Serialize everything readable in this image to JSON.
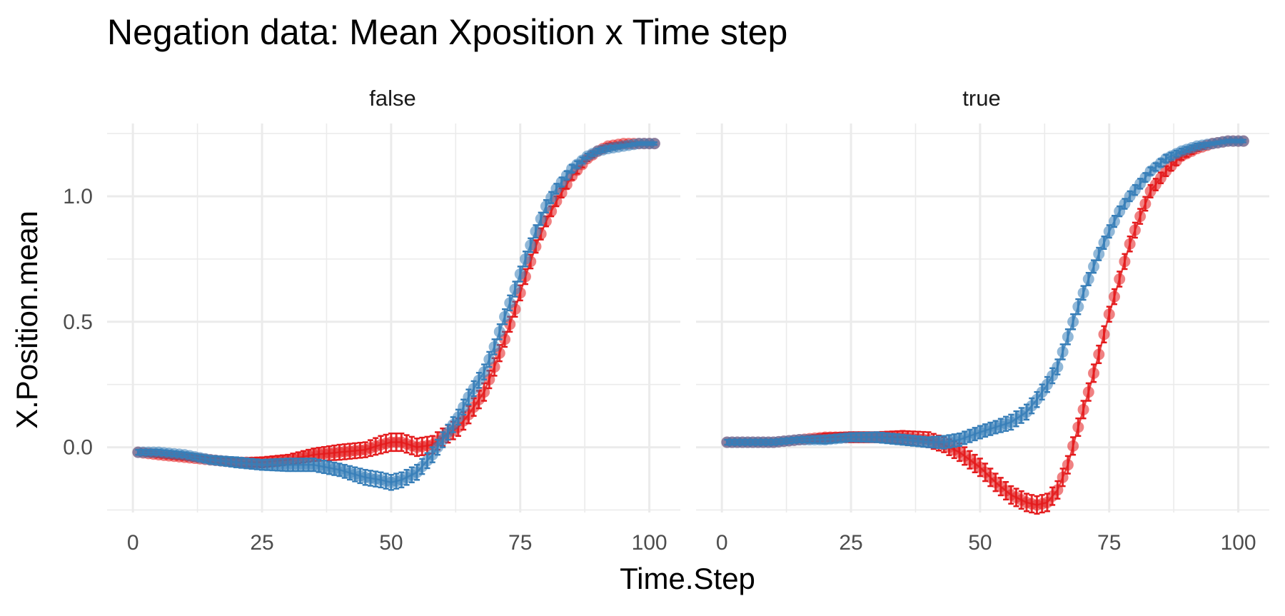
{
  "chart_data": {
    "type": "line",
    "title": "Negation data: Mean Xposition x Time step",
    "xlabel": "Time.Step",
    "ylabel": "X.Position.mean",
    "xlim": [
      -5,
      106
    ],
    "ylim": [
      -0.26,
      1.29
    ],
    "xticks": [
      0,
      25,
      50,
      75,
      100
    ],
    "xtick_labels": [
      "0",
      "25",
      "50",
      "75",
      "100"
    ],
    "yticks": [
      0.0,
      0.5,
      1.0
    ],
    "ytick_labels": [
      "0.0",
      "0.5",
      "1.0"
    ],
    "error_bars": true,
    "grid": true,
    "legend": "none",
    "series_colors": {
      "red": "#e41a1c",
      "blue": "#377eb8"
    },
    "panels": [
      {
        "label": "false",
        "series": [
          {
            "name": "red",
            "color": "#e41a1c",
            "x": [
              1,
              5,
              10,
              15,
              20,
              25,
              30,
              35,
              40,
              45,
              48,
              50,
              52,
              55,
              58,
              60,
              63,
              65,
              68,
              70,
              72,
              74,
              76,
              78,
              80,
              82,
              85,
              88,
              90,
              92,
              95,
              98,
              101
            ],
            "y": [
              -0.02,
              -0.03,
              -0.04,
              -0.05,
              -0.06,
              -0.06,
              -0.05,
              -0.03,
              -0.02,
              -0.01,
              0.01,
              0.02,
              0.02,
              0.0,
              0.01,
              0.04,
              0.08,
              0.13,
              0.22,
              0.32,
              0.43,
              0.55,
              0.68,
              0.8,
              0.9,
              0.98,
              1.08,
              1.15,
              1.18,
              1.2,
              1.21,
              1.21,
              1.21
            ],
            "err": [
              0.01,
              0.01,
              0.01,
              0.01,
              0.015,
              0.02,
              0.02,
              0.025,
              0.03,
              0.03,
              0.035,
              0.035,
              0.035,
              0.035,
              0.035,
              0.035,
              0.035,
              0.035,
              0.035,
              0.035,
              0.03,
              0.03,
              0.03,
              0.025,
              0.02,
              0.02,
              0.015,
              0.01,
              0.01,
              0.01,
              0.005,
              0.005,
              0.005
            ]
          },
          {
            "name": "blue",
            "color": "#377eb8",
            "x": [
              1,
              5,
              10,
              15,
              20,
              25,
              30,
              35,
              40,
              45,
              48,
              50,
              52,
              55,
              58,
              60,
              63,
              65,
              68,
              70,
              72,
              74,
              76,
              78,
              80,
              82,
              85,
              88,
              90,
              92,
              95,
              98,
              101
            ],
            "y": [
              -0.02,
              -0.02,
              -0.03,
              -0.05,
              -0.06,
              -0.07,
              -0.07,
              -0.07,
              -0.09,
              -0.12,
              -0.13,
              -0.14,
              -0.13,
              -0.1,
              -0.03,
              0.03,
              0.12,
              0.2,
              0.3,
              0.4,
              0.52,
              0.63,
              0.75,
              0.86,
              0.96,
              1.03,
              1.11,
              1.16,
              1.18,
              1.19,
              1.2,
              1.21,
              1.21
            ],
            "err": [
              0.01,
              0.01,
              0.01,
              0.015,
              0.02,
              0.02,
              0.025,
              0.025,
              0.025,
              0.03,
              0.03,
              0.03,
              0.03,
              0.03,
              0.03,
              0.03,
              0.03,
              0.03,
              0.03,
              0.03,
              0.03,
              0.03,
              0.03,
              0.025,
              0.025,
              0.02,
              0.015,
              0.01,
              0.01,
              0.01,
              0.005,
              0.005,
              0.005
            ]
          }
        ]
      },
      {
        "label": "true",
        "series": [
          {
            "name": "red",
            "color": "#e41a1c",
            "x": [
              1,
              5,
              10,
              15,
              20,
              25,
              30,
              35,
              40,
              43,
              46,
              50,
              53,
              56,
              59,
              61,
              63,
              65,
              67,
              69,
              71,
              73,
              75,
              77,
              79,
              81,
              83,
              86,
              89,
              92,
              95,
              98,
              101
            ],
            "y": [
              0.02,
              0.02,
              0.02,
              0.03,
              0.04,
              0.04,
              0.04,
              0.04,
              0.03,
              0.01,
              -0.02,
              -0.08,
              -0.14,
              -0.19,
              -0.22,
              -0.23,
              -0.22,
              -0.17,
              -0.07,
              0.08,
              0.22,
              0.37,
              0.53,
              0.67,
              0.81,
              0.92,
              1.02,
              1.1,
              1.16,
              1.19,
              1.21,
              1.22,
              1.22
            ],
            "err": [
              0.01,
              0.01,
              0.01,
              0.01,
              0.015,
              0.02,
              0.02,
              0.025,
              0.03,
              0.03,
              0.035,
              0.035,
              0.035,
              0.035,
              0.035,
              0.035,
              0.035,
              0.035,
              0.035,
              0.035,
              0.035,
              0.035,
              0.03,
              0.03,
              0.03,
              0.03,
              0.025,
              0.02,
              0.015,
              0.01,
              0.005,
              0.005,
              0.005
            ]
          },
          {
            "name": "blue",
            "color": "#377eb8",
            "x": [
              1,
              5,
              10,
              15,
              20,
              25,
              30,
              35,
              40,
              43,
              46,
              50,
              53,
              56,
              59,
              61,
              63,
              65,
              67,
              69,
              71,
              73,
              75,
              77,
              79,
              81,
              83,
              86,
              89,
              92,
              95,
              98,
              101
            ],
            "y": [
              0.02,
              0.02,
              0.02,
              0.03,
              0.03,
              0.04,
              0.04,
              0.03,
              0.02,
              0.02,
              0.03,
              0.06,
              0.08,
              0.1,
              0.14,
              0.19,
              0.25,
              0.32,
              0.44,
              0.56,
              0.67,
              0.77,
              0.86,
              0.94,
              1.0,
              1.05,
              1.1,
              1.15,
              1.18,
              1.2,
              1.21,
              1.22,
              1.22
            ],
            "err": [
              0.01,
              0.01,
              0.01,
              0.01,
              0.015,
              0.015,
              0.02,
              0.02,
              0.02,
              0.025,
              0.025,
              0.025,
              0.025,
              0.03,
              0.03,
              0.03,
              0.03,
              0.03,
              0.03,
              0.03,
              0.025,
              0.025,
              0.025,
              0.02,
              0.02,
              0.02,
              0.015,
              0.015,
              0.01,
              0.01,
              0.005,
              0.005,
              0.005
            ]
          }
        ]
      }
    ]
  }
}
